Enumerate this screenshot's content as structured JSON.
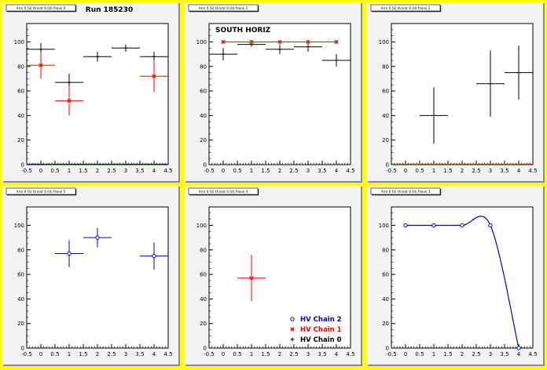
{
  "colors": {
    "page_border": "#ffff00",
    "pad_fill": "#f2f2f2",
    "frame_fill": "#ffffff",
    "chain0": "#000000",
    "chain1": "#ff0000",
    "chain2": "#0000cc"
  },
  "chart_data": [
    {
      "type": "scatter",
      "pad_title": "Arm 0 (S) Orient 0 (H) Panel 0",
      "title": "Run 185230",
      "xlim": [
        -0.5,
        4.5
      ],
      "ylim": [
        0,
        115
      ],
      "xticks": [
        -0.5,
        0,
        0.5,
        1,
        1.5,
        2,
        2.5,
        3,
        3.5,
        4,
        4.5
      ],
      "yticks": [
        0,
        20,
        40,
        60,
        80,
        100
      ],
      "series": [
        {
          "chain": 0,
          "marker": "cross",
          "points": [
            {
              "x": 0,
              "y": 94,
              "xerr": 0.5,
              "yerr": 5
            },
            {
              "x": 1,
              "y": 67,
              "xerr": 0.5,
              "yerr": 7
            },
            {
              "x": 2,
              "y": 88,
              "xerr": 0.5,
              "yerr": 4
            },
            {
              "x": 3,
              "y": 95,
              "xerr": 0.5,
              "yerr": 3
            },
            {
              "x": 4,
              "y": 88,
              "xerr": 0.5,
              "yerr": 4
            }
          ]
        },
        {
          "chain": 1,
          "marker": "star",
          "points": [
            {
              "x": 0,
              "y": 81,
              "xerr": 0.5,
              "yerr": 11
            },
            {
              "x": 1,
              "y": 52,
              "xerr": 0.5,
              "yerr": 12
            },
            {
              "x": 4,
              "y": 72,
              "xerr": 0.5,
              "yerr": 13
            }
          ]
        }
      ],
      "baseline": {
        "chain": 2,
        "y": 0
      }
    },
    {
      "type": "scatter",
      "pad_title": "Arm 0 (S) Orient 0 (H) Panel 1",
      "title": "SOUTH HORIZ",
      "xlim": [
        -0.5,
        4.5
      ],
      "ylim": [
        0,
        115
      ],
      "xticks": [
        -0.5,
        0,
        0.5,
        1,
        1.5,
        2,
        2.5,
        3,
        3.5,
        4,
        4.5
      ],
      "yticks": [
        0,
        20,
        40,
        60,
        80,
        100
      ],
      "series": [
        {
          "chain": 0,
          "marker": "cross",
          "points": [
            {
              "x": 0,
              "y": 90,
              "xerr": 0.5,
              "yerr": 5
            },
            {
              "x": 1,
              "y": 98,
              "xerr": 0.5,
              "yerr": 2
            },
            {
              "x": 2,
              "y": 94,
              "xerr": 0.5,
              "yerr": 4
            },
            {
              "x": 3,
              "y": 96,
              "xerr": 0.5,
              "yerr": 4
            },
            {
              "x": 4,
              "y": 85,
              "xerr": 0.5,
              "yerr": 5
            }
          ]
        },
        {
          "chain": 1,
          "marker": "star",
          "line": true,
          "points": [
            {
              "x": 0,
              "y": 100
            },
            {
              "x": 1,
              "y": 100
            },
            {
              "x": 2,
              "y": 100
            },
            {
              "x": 3,
              "y": 100
            },
            {
              "x": 4,
              "y": 100
            }
          ]
        }
      ]
    },
    {
      "type": "scatter",
      "pad_title": "Arm 0 (S) Orient 0 (H) Panel 2",
      "title": "",
      "xlim": [
        -0.5,
        4.5
      ],
      "ylim": [
        0,
        115
      ],
      "xticks": [
        -0.5,
        0,
        0.5,
        1,
        1.5,
        2,
        2.5,
        3,
        3.5,
        4,
        4.5
      ],
      "yticks": [
        0,
        20,
        40,
        60,
        80,
        100
      ],
      "series": [
        {
          "chain": 0,
          "marker": "cross",
          "points": [
            {
              "x": 1,
              "y": 40,
              "xerr": 0.5,
              "yerr": 23
            },
            {
              "x": 3,
              "y": 66,
              "xerr": 0.5,
              "yerr": 27
            },
            {
              "x": 4,
              "y": 75,
              "xerr": 0.5,
              "yerr": 22
            }
          ]
        }
      ],
      "baseline": {
        "chain": 1,
        "y": 0
      }
    },
    {
      "type": "scatter",
      "pad_title": "Arm 0 (S) Orient 0 (H) Panel 5",
      "title": "",
      "xlim": [
        -0.5,
        4.5
      ],
      "ylim": [
        0,
        115
      ],
      "xticks": [
        -0.5,
        0,
        0.5,
        1,
        1.5,
        2,
        2.5,
        3,
        3.5,
        4,
        4.5
      ],
      "yticks": [
        0,
        20,
        40,
        60,
        80,
        100
      ],
      "series": [
        {
          "chain": 2,
          "marker": "circle",
          "points": [
            {
              "x": 1,
              "y": 77,
              "xerr": 0.5,
              "yerr": 11
            },
            {
              "x": 2,
              "y": 90,
              "xerr": 0.5,
              "yerr": 8
            },
            {
              "x": 4,
              "y": 75,
              "xerr": 0.5,
              "yerr": 11
            }
          ]
        }
      ]
    },
    {
      "type": "scatter",
      "pad_title": "Arm 0 (S) Orient 0 (H) Panel 4",
      "title": "",
      "xlim": [
        -0.5,
        4.5
      ],
      "ylim": [
        0,
        115
      ],
      "xticks": [
        -0.5,
        0,
        0.5,
        1,
        1.5,
        2,
        2.5,
        3,
        3.5,
        4,
        4.5
      ],
      "yticks": [
        0,
        20,
        40,
        60,
        80,
        100
      ],
      "series": [
        {
          "chain": 1,
          "marker": "star",
          "points": [
            {
              "x": 1,
              "y": 57,
              "xerr": 0.5,
              "yerr": 19
            }
          ]
        }
      ],
      "legend": {
        "placement": "bottom-right",
        "entries": [
          {
            "chain": 2,
            "marker": "circle",
            "label": "HV Chain 2"
          },
          {
            "chain": 1,
            "marker": "star",
            "label": "HV Chain 1"
          },
          {
            "chain": 0,
            "marker": "cross",
            "label": "HV Chain 0"
          }
        ]
      }
    },
    {
      "type": "line",
      "pad_title": "Arm 0 (S) Orient 0 (H) Panel 3",
      "title": "",
      "xlim": [
        -0.5,
        4.5
      ],
      "ylim": [
        0,
        115
      ],
      "xticks": [
        -0.5,
        0,
        0.5,
        1,
        1.5,
        2,
        2.5,
        3,
        3.5,
        4,
        4.5
      ],
      "yticks": [
        0,
        20,
        40,
        60,
        80,
        100
      ],
      "series": [
        {
          "chain": 2,
          "marker": "circle",
          "smooth": true,
          "points": [
            {
              "x": 0,
              "y": 100
            },
            {
              "x": 1,
              "y": 100
            },
            {
              "x": 2,
              "y": 100
            },
            {
              "x": 3,
              "y": 100
            },
            {
              "x": 4,
              "y": 0
            }
          ]
        }
      ]
    }
  ]
}
